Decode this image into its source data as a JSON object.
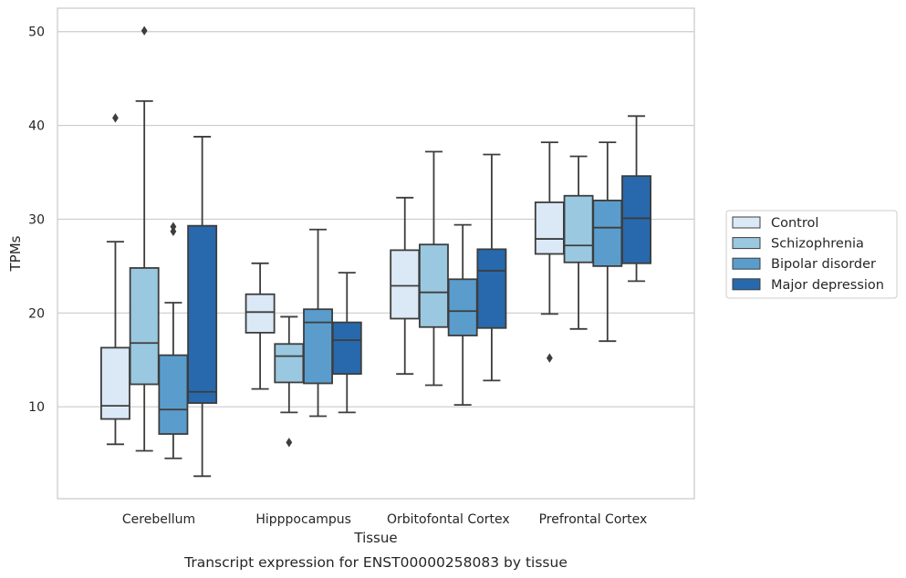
{
  "chart_data": {
    "type": "box",
    "title": "",
    "caption": "Transcript expression for ENST00000258083 by tissue",
    "xlabel": "Tissue",
    "ylabel": "TPMs",
    "ylim": [
      0.2,
      52.5
    ],
    "yticks": [
      10,
      20,
      30,
      40,
      50
    ],
    "grid": "horizontal",
    "legend_position": "right",
    "categories": [
      "Cerebellum",
      "Hipppocampus",
      "Orbitofontal Cortex",
      "Prefrontal Cortex"
    ],
    "series": [
      {
        "name": "Control",
        "color": "#dbe9f6",
        "boxes": [
          {
            "whisker_low": 6.0,
            "q1": 8.7,
            "median": 10.1,
            "q3": 16.3,
            "whisker_high": 27.6,
            "outliers": [
              40.8
            ]
          },
          {
            "whisker_low": 11.9,
            "q1": 17.9,
            "median": 20.1,
            "q3": 22.0,
            "whisker_high": 25.3,
            "outliers": []
          },
          {
            "whisker_low": 13.5,
            "q1": 19.4,
            "median": 22.9,
            "q3": 26.7,
            "whisker_high": 32.3,
            "outliers": []
          },
          {
            "whisker_low": 19.9,
            "q1": 26.3,
            "median": 27.9,
            "q3": 31.8,
            "whisker_high": 38.2,
            "outliers": [
              15.2
            ]
          }
        ]
      },
      {
        "name": "Schizophrenia",
        "color": "#9ac8e0",
        "boxes": [
          {
            "whisker_low": 5.3,
            "q1": 12.4,
            "median": 16.8,
            "q3": 24.8,
            "whisker_high": 42.6,
            "outliers": [
              50.1
            ]
          },
          {
            "whisker_low": 9.4,
            "q1": 12.6,
            "median": 15.4,
            "q3": 16.7,
            "whisker_high": 19.6,
            "outliers": [
              6.2
            ]
          },
          {
            "whisker_low": 12.3,
            "q1": 18.5,
            "median": 22.2,
            "q3": 27.3,
            "whisker_high": 37.2,
            "outliers": []
          },
          {
            "whisker_low": 18.3,
            "q1": 25.4,
            "median": 27.2,
            "q3": 32.5,
            "whisker_high": 36.7,
            "outliers": []
          }
        ]
      },
      {
        "name": "Bipolar disorder",
        "color": "#5a9dcd",
        "boxes": [
          {
            "whisker_low": 4.5,
            "q1": 7.1,
            "median": 9.7,
            "q3": 15.5,
            "whisker_high": 21.1,
            "outliers": [
              28.7,
              29.2
            ]
          },
          {
            "whisker_low": 9.0,
            "q1": 12.5,
            "median": 19.0,
            "q3": 20.4,
            "whisker_high": 28.9,
            "outliers": []
          },
          {
            "whisker_low": 10.2,
            "q1": 17.6,
            "median": 20.2,
            "q3": 23.6,
            "whisker_high": 29.4,
            "outliers": []
          },
          {
            "whisker_low": 17.0,
            "q1": 25.0,
            "median": 29.1,
            "q3": 32.0,
            "whisker_high": 38.2,
            "outliers": []
          }
        ]
      },
      {
        "name": "Major depression",
        "color": "#2769ac",
        "boxes": [
          {
            "whisker_low": 2.6,
            "q1": 10.4,
            "median": 11.6,
            "q3": 29.3,
            "whisker_high": 38.8,
            "outliers": []
          },
          {
            "whisker_low": 9.4,
            "q1": 13.5,
            "median": 17.1,
            "q3": 19.0,
            "whisker_high": 24.3,
            "outliers": []
          },
          {
            "whisker_low": 12.8,
            "q1": 18.4,
            "median": 24.5,
            "q3": 26.8,
            "whisker_high": 36.9,
            "outliers": []
          },
          {
            "whisker_low": 23.4,
            "q1": 25.3,
            "median": 30.1,
            "q3": 34.6,
            "whisker_high": 41.0,
            "outliers": []
          }
        ]
      }
    ]
  },
  "colors": {
    "grid": "#cccccc",
    "frame": "#cccccc",
    "line": "#3d3d3d"
  }
}
